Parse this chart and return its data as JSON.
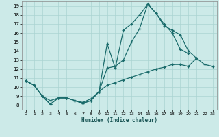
{
  "title": "",
  "xlabel": "Humidex (Indice chaleur)",
  "xlim": [
    -0.5,
    23.5
  ],
  "ylim": [
    7.5,
    19.5
  ],
  "xticks": [
    0,
    1,
    2,
    3,
    4,
    5,
    6,
    7,
    8,
    9,
    10,
    11,
    12,
    13,
    14,
    15,
    16,
    17,
    18,
    19,
    20,
    21,
    22,
    23
  ],
  "yticks": [
    8,
    9,
    10,
    11,
    12,
    13,
    14,
    15,
    16,
    17,
    18,
    19
  ],
  "bg_color": "#cceae8",
  "grid_color": "#aad4d2",
  "line_color": "#1a6b6b",
  "line1_x": [
    0,
    1,
    2,
    3,
    4,
    5,
    6,
    7,
    8,
    9,
    10,
    11,
    12,
    13,
    14,
    15,
    16,
    17,
    18,
    19,
    20,
    21
  ],
  "line1_y": [
    10.7,
    10.2,
    9.0,
    8.1,
    8.8,
    8.8,
    8.5,
    8.2,
    8.5,
    9.5,
    14.8,
    12.1,
    16.3,
    17.0,
    18.0,
    19.2,
    18.2,
    16.8,
    16.3,
    15.8,
    14.0,
    13.2
  ],
  "line2_x": [
    0,
    1,
    2,
    3,
    4,
    5,
    6,
    7,
    8,
    9,
    10,
    11,
    12,
    13,
    14,
    15,
    16,
    17,
    18,
    19,
    20
  ],
  "line2_y": [
    10.7,
    10.2,
    9.0,
    8.5,
    8.8,
    8.8,
    8.5,
    8.3,
    8.7,
    9.5,
    12.1,
    12.3,
    13.0,
    15.0,
    16.5,
    19.2,
    18.2,
    17.0,
    16.0,
    14.2,
    13.7
  ],
  "line3_x": [
    0,
    1,
    2,
    3,
    4,
    5,
    6,
    7,
    8,
    9,
    10,
    11,
    12,
    13,
    14,
    15,
    16,
    17,
    18,
    19,
    20,
    21,
    22,
    23
  ],
  "line3_y": [
    10.7,
    10.2,
    9.0,
    8.1,
    8.8,
    8.8,
    8.5,
    8.2,
    8.5,
    9.5,
    10.2,
    10.5,
    10.8,
    11.1,
    11.4,
    11.7,
    12.0,
    12.2,
    12.5,
    12.5,
    12.3,
    13.2,
    12.5,
    12.3
  ]
}
